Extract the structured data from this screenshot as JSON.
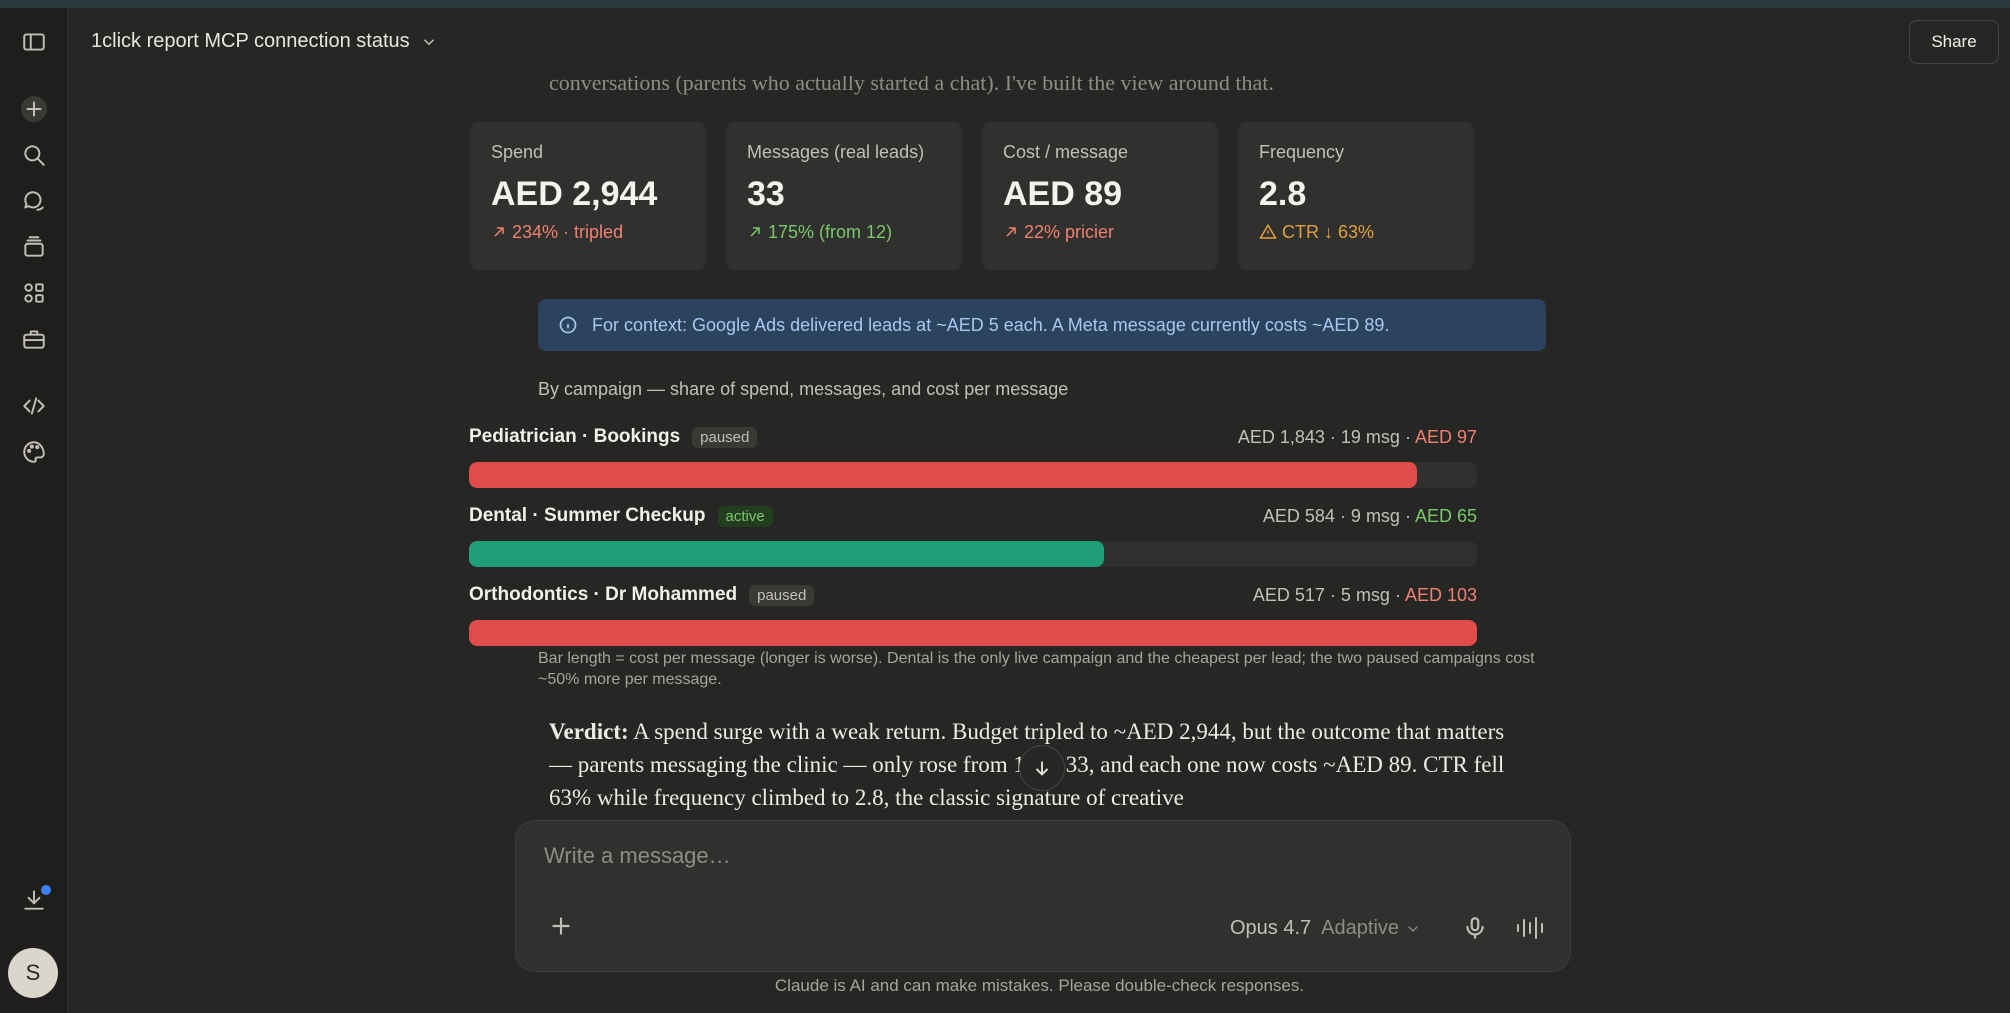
{
  "header": {
    "title": "1click report MCP connection status",
    "share_label": "Share"
  },
  "intro_text": "conversations (parents who actually started a chat). I've built the view around that.",
  "cards": [
    {
      "label": "Spend",
      "value": "AED 2,944",
      "delta": "234% · tripled",
      "delta_icon": "arrow-up-right-icon",
      "color": "#f08070"
    },
    {
      "label": "Messages (real leads)",
      "value": "33",
      "delta": "175% (from 12)",
      "delta_icon": "arrow-up-right-icon",
      "color": "#7bc86b"
    },
    {
      "label": "Cost / message",
      "value": "AED 89",
      "delta": "22% pricier",
      "delta_icon": "arrow-up-right-icon",
      "color": "#f08070"
    },
    {
      "label": "Frequency",
      "value": "2.8",
      "delta": "CTR ↓ 63%",
      "delta_icon": "warning-icon",
      "color": "#e0a040"
    }
  ],
  "info_banner": "For context: Google Ads delivered leads at ~AED 5 each. A Meta message currently costs ~AED 89.",
  "section_title": "By campaign — share of spend, messages, and cost per message",
  "campaigns": [
    {
      "name": "Pediatrician · Bookings",
      "status": "paused",
      "spend_stats": "AED 1,843 · 19 msg · ",
      "cpm": "AED 97",
      "cpm_color": "#f08070",
      "bar_fraction": 0.94,
      "bar_color": "#e04b4b"
    },
    {
      "name": "Dental · Summer Checkup",
      "status": "active",
      "spend_stats": "AED 584 · 9 msg · ",
      "cpm": "AED 65",
      "cpm_color": "#7bc86b",
      "bar_fraction": 0.63,
      "bar_color": "#1f9e78"
    },
    {
      "name": "Orthodontics · Dr Mohammed",
      "status": "paused",
      "spend_stats": "AED 517 · 5 msg · ",
      "cpm": "AED 103",
      "cpm_color": "#f08070",
      "bar_fraction": 1.0,
      "bar_color": "#e04b4b"
    }
  ],
  "bar_note": "Bar length = cost per message (longer is worse). Dental is the only live campaign and the cheapest per lead; the two paused campaigns cost ~50% more per message.",
  "verdict": {
    "label": "Verdict:",
    "text": " A spend surge with a weak return. Budget tripled to ~AED 2,944, but the outcome that matters — parents messaging the clinic — only rose from 12 to 33, and each one now costs ~AED 89. CTR fell 63% while frequency climbed to 2.8, the classic signature of creative"
  },
  "composer": {
    "placeholder": "Write a message…",
    "model": "Opus 4.7",
    "mode": "Adaptive"
  },
  "disclaimer": "Claude is AI and can make mistakes. Please double-check responses.",
  "user": {
    "initial": "S"
  }
}
